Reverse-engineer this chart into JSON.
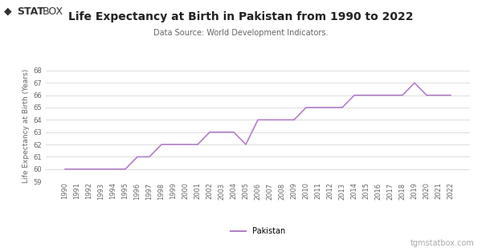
{
  "years": [
    1990,
    1991,
    1992,
    1993,
    1994,
    1995,
    1996,
    1997,
    1998,
    1999,
    2000,
    2001,
    2002,
    2003,
    2004,
    2005,
    2006,
    2007,
    2008,
    2009,
    2010,
    2011,
    2012,
    2013,
    2014,
    2015,
    2016,
    2017,
    2018,
    2019,
    2020,
    2021,
    2022
  ],
  "values": [
    60.0,
    60.0,
    60.0,
    60.0,
    60.0,
    60.0,
    61.0,
    61.0,
    62.0,
    62.0,
    62.0,
    62.0,
    63.0,
    63.0,
    63.0,
    62.0,
    64.0,
    64.0,
    64.0,
    64.0,
    65.0,
    65.0,
    65.0,
    65.0,
    66.0,
    66.0,
    66.0,
    66.0,
    66.0,
    67.0,
    66.0,
    66.0,
    66.0
  ],
  "title": "Life Expectancy at Birth in Pakistan from 1990 to 2022",
  "subtitle": "Data Source: World Development Indicators.",
  "ylabel": "Life Expectancy at Birth (Years)",
  "line_color": "#b07fc7",
  "background_color": "#ffffff",
  "grid_color": "#dddddd",
  "ylim": [
    59,
    68
  ],
  "yticks": [
    59,
    60,
    61,
    62,
    63,
    64,
    65,
    66,
    67,
    68
  ],
  "legend_label": "Pakistan",
  "watermark": "tgmstatbox.com",
  "logo_bold": "STAT",
  "logo_light": "BOX",
  "logo_diamond": "◆",
  "title_fontsize": 10,
  "subtitle_fontsize": 7,
  "axis_label_fontsize": 6.5,
  "tick_fontsize": 6,
  "legend_fontsize": 7,
  "watermark_fontsize": 7
}
